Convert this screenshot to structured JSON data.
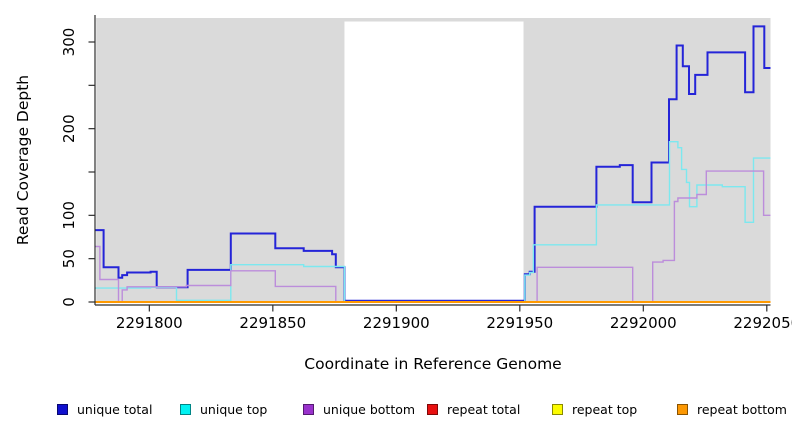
{
  "chart_data": {
    "type": "line",
    "line_style": "step",
    "title": "",
    "xlabel": "Coordinate in Reference Genome",
    "ylabel": "Read Coverage Depth",
    "xlim": [
      2291778,
      2292051.5
    ],
    "ylim": [
      0,
      331
    ],
    "grid": false,
    "legend_position": "bottom",
    "x_ticks": [
      {
        "value": 2291800,
        "label": "2291800"
      },
      {
        "value": 2291850,
        "label": "2291850"
      },
      {
        "value": 2291900,
        "label": "2291900"
      },
      {
        "value": 2291950,
        "label": "2291950"
      },
      {
        "value": 2292000,
        "label": "2292000"
      },
      {
        "value": 2292050,
        "label": "2292050"
      }
    ],
    "y_ticks": [
      {
        "value": 0,
        "label": "0"
      },
      {
        "value": 50,
        "label": "50"
      },
      {
        "value": 100,
        "label": "100"
      },
      {
        "value": 150,
        "label": ""
      },
      {
        "value": 200,
        "label": "200"
      },
      {
        "value": 250,
        "label": ""
      },
      {
        "value": 300,
        "label": "300"
      }
    ],
    "shaded_regions": [
      {
        "x0": 2291778.5,
        "x1": 2291879,
        "color": "#DADADA",
        "note": "covered region left of gap"
      },
      {
        "x0": 2291951.5,
        "x1": 2292051.5,
        "color": "#DADADA",
        "note": "covered region right of gap"
      }
    ],
    "gap_region": {
      "x0": 2291879,
      "x1": 2291951.5
    },
    "series": [
      {
        "name": "unique total",
        "color": "#2424D8",
        "width": 2,
        "points": [
          [
            2291778,
            83
          ],
          [
            2291781.5,
            40
          ],
          [
            2291787.5,
            28
          ],
          [
            2291789,
            31
          ],
          [
            2291791,
            34
          ],
          [
            2291800.5,
            35
          ],
          [
            2291803,
            17
          ],
          [
            2291815.5,
            37
          ],
          [
            2291833,
            79
          ],
          [
            2291851,
            62
          ],
          [
            2291862.5,
            59
          ],
          [
            2291874,
            55
          ],
          [
            2291875.5,
            40
          ],
          [
            2291879,
            0
          ],
          [
            2291952,
            32
          ],
          [
            2291954,
            35
          ],
          [
            2291956,
            110
          ],
          [
            2291981,
            156
          ],
          [
            2291990.5,
            158
          ],
          [
            2291995.7,
            115
          ],
          [
            2292003.3,
            161
          ],
          [
            2292010.4,
            234
          ],
          [
            2292013.5,
            296
          ],
          [
            2292016,
            272
          ],
          [
            2292018.5,
            240
          ],
          [
            2292021,
            262
          ],
          [
            2292026,
            288
          ],
          [
            2292041.2,
            242
          ],
          [
            2292044.6,
            318
          ],
          [
            2292049,
            270
          ]
        ]
      },
      {
        "name": "unique top",
        "color": "#7CE8EF",
        "width": 1.4,
        "points": [
          [
            2291778,
            16
          ],
          [
            2291800.5,
            17
          ],
          [
            2291811,
            2
          ],
          [
            2291833,
            43
          ],
          [
            2291862.5,
            41
          ],
          [
            2291879,
            0
          ],
          [
            2291952,
            31
          ],
          [
            2291954,
            34
          ],
          [
            2291955.5,
            66
          ],
          [
            2291981,
            112
          ],
          [
            2292010.6,
            185
          ],
          [
            2292014,
            178
          ],
          [
            2292015.5,
            153
          ],
          [
            2292017.5,
            138
          ],
          [
            2292018.7,
            110
          ],
          [
            2292021.7,
            135
          ],
          [
            2292032,
            133
          ],
          [
            2292041.2,
            92
          ],
          [
            2292044.6,
            166
          ]
        ]
      },
      {
        "name": "unique bottom",
        "color": "#BC8DDB",
        "width": 1.4,
        "points": [
          [
            2291778,
            64
          ],
          [
            2291780,
            26
          ],
          [
            2291787.5,
            0
          ],
          [
            2291789,
            14
          ],
          [
            2291791,
            17.5
          ],
          [
            2291815,
            19
          ],
          [
            2291833,
            36
          ],
          [
            2291851,
            18
          ],
          [
            2291875.5,
            0
          ],
          [
            2291957,
            40
          ],
          [
            2291995.7,
            0
          ],
          [
            2292003.8,
            46
          ],
          [
            2292008,
            48
          ],
          [
            2292012.6,
            116
          ],
          [
            2292014,
            120
          ],
          [
            2292021.7,
            124
          ],
          [
            2292025.5,
            151
          ],
          [
            2292048.7,
            100
          ]
        ]
      },
      {
        "name": "repeat total",
        "color": "#DC1414",
        "width": 1.4,
        "points": [
          [
            2291778,
            0
          ]
        ]
      },
      {
        "name": "repeat top",
        "color": "#F5F500",
        "width": 1.4,
        "points": [
          [
            2291778,
            0
          ]
        ]
      },
      {
        "name": "repeat bottom",
        "color": "#FF9A00",
        "width": 2,
        "points": [
          [
            2291778,
            0
          ]
        ]
      }
    ],
    "legend": [
      {
        "label": "unique total",
        "color": "#1010CE"
      },
      {
        "label": "unique top",
        "color": "#00F2F2"
      },
      {
        "label": "unique bottom",
        "color": "#9932CC"
      },
      {
        "label": "repeat total",
        "color": "#E81010"
      },
      {
        "label": "repeat top",
        "color": "#FCFC00"
      },
      {
        "label": "repeat bottom",
        "color": "#FC9803"
      }
    ]
  }
}
